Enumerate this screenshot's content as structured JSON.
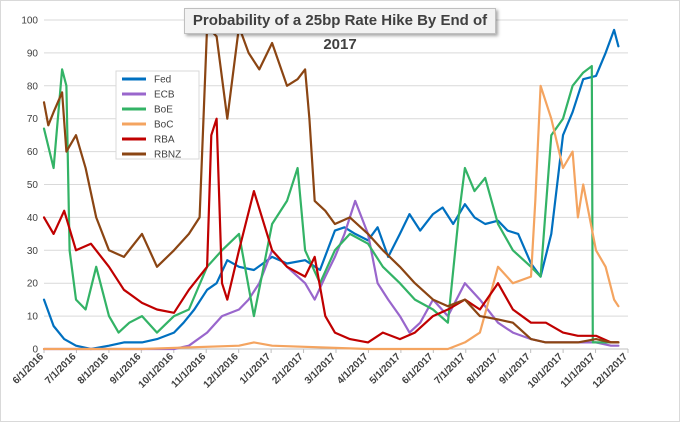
{
  "chart_data": {
    "type": "line",
    "title": "Probability of a 25bp Rate Hike By End of 2017",
    "xlabel": "",
    "ylabel": "",
    "ylim": [
      0,
      100
    ],
    "yticks": [
      0,
      10,
      20,
      30,
      40,
      50,
      60,
      70,
      80,
      90,
      100
    ],
    "xlim": [
      "2016-06-01",
      "2017-12-01"
    ],
    "xticks": [
      "6/1/2016",
      "7/1/2016",
      "8/1/2016",
      "9/1/2016",
      "10/1/2016",
      "11/1/2016",
      "12/1/2016",
      "1/1/2017",
      "2/1/2017",
      "3/1/2017",
      "4/1/2017",
      "5/1/2017",
      "6/1/2017",
      "7/1/2017",
      "8/1/2017",
      "9/1/2017",
      "10/1/2017",
      "11/1/2017",
      "12/1/2017"
    ],
    "grid": {
      "horizontal": true,
      "vertical": false
    },
    "legend_position": "top-left",
    "series": [
      {
        "name": "Fed",
        "color": "#0070c0",
        "x": [
          "2016-06-01",
          "2016-06-10",
          "2016-06-20",
          "2016-07-01",
          "2016-07-15",
          "2016-08-01",
          "2016-08-15",
          "2016-09-01",
          "2016-09-15",
          "2016-10-01",
          "2016-10-10",
          "2016-10-20",
          "2016-11-01",
          "2016-11-10",
          "2016-11-20",
          "2016-12-01",
          "2016-12-15",
          "2017-01-01",
          "2017-01-15",
          "2017-02-01",
          "2017-02-15",
          "2017-03-01",
          "2017-03-10",
          "2017-03-20",
          "2017-04-01",
          "2017-04-10",
          "2017-04-20",
          "2017-05-01",
          "2017-05-10",
          "2017-05-20",
          "2017-06-01",
          "2017-06-10",
          "2017-06-20",
          "2017-07-01",
          "2017-07-10",
          "2017-07-20",
          "2017-08-01",
          "2017-08-10",
          "2017-08-20",
          "2017-09-01",
          "2017-09-10",
          "2017-09-20",
          "2017-10-01",
          "2017-10-10",
          "2017-10-20",
          "2017-11-01",
          "2017-11-10",
          "2017-11-18",
          "2017-11-22"
        ],
        "y": [
          15,
          7,
          3,
          1,
          0,
          1,
          2,
          2,
          3,
          5,
          8,
          12,
          18,
          20,
          27,
          25,
          24,
          28,
          26,
          27,
          24,
          36,
          37,
          35,
          33,
          37,
          28,
          35,
          41,
          36,
          41,
          43,
          38,
          44,
          40,
          38,
          39,
          36,
          35,
          26,
          22,
          35,
          65,
          72,
          82,
          83,
          90,
          97,
          92
        ]
      },
      {
        "name": "ECB",
        "color": "#9966cc",
        "x": [
          "2016-06-01",
          "2016-06-15",
          "2016-07-01",
          "2016-07-15",
          "2016-08-01",
          "2016-08-15",
          "2016-09-01",
          "2016-09-15",
          "2016-10-01",
          "2016-10-15",
          "2016-11-01",
          "2016-11-15",
          "2016-12-01",
          "2016-12-10",
          "2016-12-20",
          "2017-01-01",
          "2017-01-15",
          "2017-02-01",
          "2017-02-10",
          "2017-02-20",
          "2017-03-01",
          "2017-03-10",
          "2017-03-20",
          "2017-04-01",
          "2017-04-10",
          "2017-04-20",
          "2017-05-01",
          "2017-05-10",
          "2017-05-20",
          "2017-06-01",
          "2017-06-15",
          "2017-07-01",
          "2017-07-15",
          "2017-08-01",
          "2017-08-15",
          "2017-09-01",
          "2017-09-15",
          "2017-10-01",
          "2017-10-15",
          "2017-11-01",
          "2017-11-15",
          "2017-11-22"
        ],
        "y": [
          0,
          0,
          0,
          0,
          0,
          0,
          0,
          0,
          0,
          1,
          5,
          10,
          12,
          15,
          20,
          30,
          25,
          20,
          15,
          22,
          28,
          35,
          45,
          35,
          20,
          15,
          10,
          5,
          8,
          15,
          10,
          20,
          15,
          8,
          5,
          3,
          2,
          2,
          2,
          2,
          1,
          1
        ]
      },
      {
        "name": "BoE",
        "color": "#33b366",
        "x": [
          "2016-06-01",
          "2016-06-10",
          "2016-06-18",
          "2016-06-22",
          "2016-06-25",
          "2016-07-01",
          "2016-07-10",
          "2016-07-20",
          "2016-08-01",
          "2016-08-10",
          "2016-08-20",
          "2016-09-01",
          "2016-09-15",
          "2016-10-01",
          "2016-10-15",
          "2016-11-01",
          "2016-11-15",
          "2016-12-01",
          "2016-12-15",
          "2017-01-01",
          "2017-01-15",
          "2017-01-25",
          "2017-02-01",
          "2017-02-15",
          "2017-03-01",
          "2017-03-15",
          "2017-04-01",
          "2017-04-15",
          "2017-05-01",
          "2017-05-15",
          "2017-06-01",
          "2017-06-15",
          "2017-06-25",
          "2017-07-01",
          "2017-07-10",
          "2017-07-20",
          "2017-08-01",
          "2017-08-15",
          "2017-09-01",
          "2017-09-10",
          "2017-09-20",
          "2017-10-01",
          "2017-10-10",
          "2017-10-20",
          "2017-10-28",
          "2017-10-29",
          "2017-11-10",
          "2017-11-22"
        ],
        "y": [
          67,
          55,
          85,
          80,
          30,
          15,
          12,
          25,
          10,
          5,
          8,
          10,
          5,
          10,
          12,
          25,
          30,
          35,
          10,
          38,
          45,
          55,
          30,
          20,
          30,
          35,
          32,
          25,
          20,
          15,
          12,
          8,
          40,
          55,
          48,
          52,
          38,
          30,
          25,
          22,
          65,
          70,
          80,
          84,
          86,
          2,
          2,
          2
        ]
      },
      {
        "name": "BoC",
        "color": "#f4a460",
        "x": [
          "2016-06-01",
          "2016-09-01",
          "2016-12-01",
          "2016-12-15",
          "2017-01-01",
          "2017-04-01",
          "2017-06-01",
          "2017-06-15",
          "2017-07-01",
          "2017-07-15",
          "2017-08-01",
          "2017-08-15",
          "2017-09-01",
          "2017-09-05",
          "2017-09-10",
          "2017-09-20",
          "2017-10-01",
          "2017-10-10",
          "2017-10-15",
          "2017-10-20",
          "2017-11-01",
          "2017-11-10",
          "2017-11-18",
          "2017-11-22"
        ],
        "y": [
          0,
          0,
          1,
          2,
          1,
          0,
          0,
          0,
          2,
          5,
          25,
          20,
          22,
          45,
          80,
          70,
          55,
          60,
          40,
          50,
          30,
          25,
          15,
          13
        ]
      },
      {
        "name": "RBA",
        "color": "#c00000",
        "x": [
          "2016-06-01",
          "2016-06-10",
          "2016-06-20",
          "2016-07-01",
          "2016-07-15",
          "2016-08-01",
          "2016-08-15",
          "2016-09-01",
          "2016-09-15",
          "2016-10-01",
          "2016-10-15",
          "2016-11-01",
          "2016-11-05",
          "2016-11-10",
          "2016-11-15",
          "2016-11-20",
          "2016-12-01",
          "2016-12-15",
          "2017-01-01",
          "2017-01-15",
          "2017-02-01",
          "2017-02-10",
          "2017-02-20",
          "2017-03-01",
          "2017-03-15",
          "2017-04-01",
          "2017-04-15",
          "2017-05-01",
          "2017-05-15",
          "2017-06-01",
          "2017-06-15",
          "2017-07-01",
          "2017-07-15",
          "2017-08-01",
          "2017-08-15",
          "2017-09-01",
          "2017-09-15",
          "2017-10-01",
          "2017-10-15",
          "2017-11-01",
          "2017-11-15",
          "2017-11-22"
        ],
        "y": [
          40,
          35,
          42,
          30,
          32,
          25,
          18,
          14,
          12,
          11,
          18,
          25,
          65,
          70,
          20,
          15,
          30,
          48,
          30,
          25,
          22,
          28,
          10,
          5,
          3,
          2,
          5,
          3,
          5,
          10,
          12,
          15,
          12,
          20,
          12,
          8,
          8,
          5,
          4,
          4,
          2,
          2
        ]
      },
      {
        "name": "RBNZ",
        "color": "#8b4513",
        "x": [
          "2016-06-01",
          "2016-06-05",
          "2016-06-10",
          "2016-06-18",
          "2016-06-22",
          "2016-07-01",
          "2016-07-10",
          "2016-07-20",
          "2016-08-01",
          "2016-08-15",
          "2016-09-01",
          "2016-09-15",
          "2016-10-01",
          "2016-10-15",
          "2016-10-25",
          "2016-11-01",
          "2016-11-10",
          "2016-11-20",
          "2016-12-01",
          "2016-12-10",
          "2016-12-20",
          "2017-01-01",
          "2017-01-15",
          "2017-01-25",
          "2017-02-01",
          "2017-02-05",
          "2017-02-10",
          "2017-02-20",
          "2017-03-01",
          "2017-03-15",
          "2017-04-01",
          "2017-04-15",
          "2017-05-01",
          "2017-05-15",
          "2017-06-01",
          "2017-06-15",
          "2017-07-01",
          "2017-07-15",
          "2017-08-01",
          "2017-08-15",
          "2017-09-01",
          "2017-09-15",
          "2017-10-01",
          "2017-10-15",
          "2017-11-01",
          "2017-11-15",
          "2017-11-22"
        ],
        "y": [
          75,
          68,
          72,
          78,
          60,
          65,
          55,
          40,
          30,
          28,
          35,
          25,
          30,
          35,
          40,
          98,
          95,
          70,
          98,
          90,
          85,
          93,
          80,
          82,
          85,
          70,
          45,
          42,
          38,
          40,
          35,
          30,
          25,
          20,
          15,
          13,
          15,
          10,
          9,
          8,
          3,
          2,
          2,
          2,
          3,
          2,
          2
        ]
      }
    ]
  }
}
